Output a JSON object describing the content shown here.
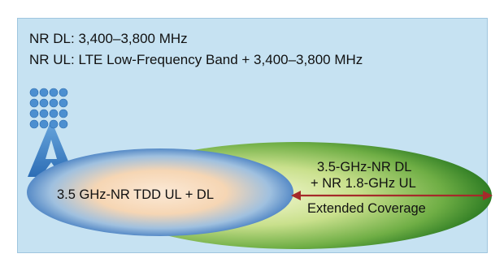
{
  "header": {
    "dl_line": "NR DL: 3,400–3,800 MHz",
    "ul_line": "NR UL: LTE Low-Frequency Band + 3,400–3,800 MHz"
  },
  "zones": {
    "inner_label": "3.5 GHz-NR TDD UL + DL",
    "outer_label_line1": "3.5-GHz-NR DL",
    "outer_label_line2": "+ NR 1.8-GHz UL",
    "coverage_label": "Extended Coverage"
  },
  "colors": {
    "background": "#c6e2f2",
    "outer_zone": "#3f8e2c",
    "inner_zone": "#2e6fbf",
    "arrow": "#a52a2a",
    "tower": "#4a8fcf"
  },
  "icons": [
    "cell-tower-icon",
    "antenna-array-icon",
    "double-arrow-icon"
  ]
}
